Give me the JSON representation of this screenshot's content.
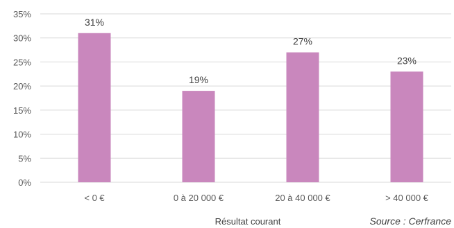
{
  "chart_data": {
    "type": "bar",
    "categories": [
      "< 0 €",
      "0 à 20 000 €",
      "20 à 40 000 €",
      "> 40 000 €"
    ],
    "values": [
      31,
      19,
      27,
      23
    ],
    "data_labels": [
      "31%",
      "19%",
      "27%",
      "23%"
    ],
    "title": "",
    "xlabel": "Résultat courant",
    "ylabel": "",
    "ylim": [
      0,
      35
    ],
    "yticks": [
      0,
      5,
      10,
      15,
      20,
      25,
      30,
      35
    ],
    "ytick_labels": [
      "0%",
      "5%",
      "10%",
      "15%",
      "20%",
      "25%",
      "30%",
      "35%"
    ],
    "grid": true,
    "legend": "none",
    "bar_color": "#c987bd",
    "grid_color": "#d9d9d9",
    "source_note": "Source : Cerfrance"
  }
}
